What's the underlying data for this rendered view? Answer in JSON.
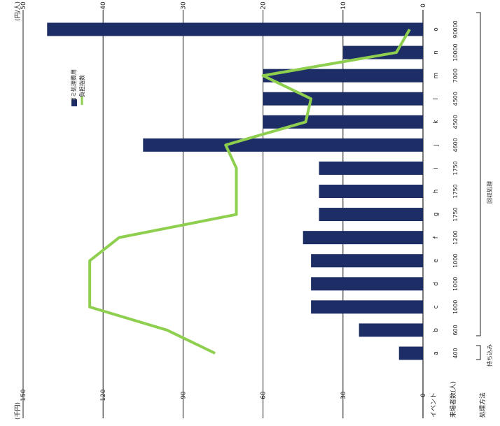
{
  "chart_data": {
    "type": "bar+line",
    "orientation": "rotated-90",
    "left_axis_unit": "(千円)",
    "right_axis_unit": "(円/人)",
    "left_ticks": [
      "150",
      "120",
      "90",
      "60",
      "30",
      "0"
    ],
    "right_ticks": [
      "50",
      "40",
      "30",
      "20",
      "10",
      "0"
    ],
    "categories": [
      "a",
      "b",
      "c",
      "d",
      "e",
      "f",
      "g",
      "h",
      "i",
      "j",
      "k",
      "l",
      "m",
      "n",
      "o"
    ],
    "participants": [
      "400",
      "600",
      "1000",
      "1000",
      "1000",
      "1200",
      "1750",
      "1750",
      "1750",
      "4600",
      "4500",
      "4500",
      "7000",
      "10000",
      "90000"
    ],
    "row_label_event": "イベント",
    "row_label_participants": "来場者数(人)",
    "row_label_sorting": "処理方法",
    "bracket_label_self": "持ち込み",
    "bracket_label_collect": "回収処理",
    "bar_values": [
      3,
      8,
      14,
      14,
      14,
      15,
      13,
      13,
      13,
      35,
      20,
      20,
      20,
      10,
      47
    ],
    "line_values": [
      78,
      96,
      125,
      125,
      125,
      114,
      70,
      70,
      70,
      74,
      44,
      42,
      60,
      10,
      5
    ],
    "ylim_bar": [
      0,
      50
    ],
    "ylim_line": [
      0,
      150
    ],
    "legend": {
      "bar_name": "ゴミ処理費用",
      "line_name": "負担指数"
    },
    "colors": {
      "bar": "#1d2d66",
      "line": "#8fcf4f",
      "grid": "#222222"
    }
  }
}
